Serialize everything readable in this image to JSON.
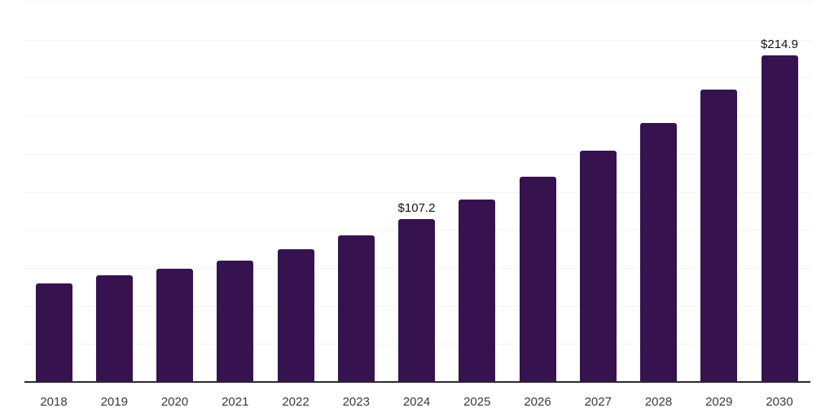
{
  "chart_data": {
    "type": "bar",
    "title": "",
    "xlabel": "",
    "ylabel": "",
    "categories": [
      "2018",
      "2019",
      "2020",
      "2021",
      "2022",
      "2023",
      "2024",
      "2025",
      "2026",
      "2027",
      "2028",
      "2029",
      "2030"
    ],
    "values": [
      64.8,
      70.2,
      74.4,
      80.0,
      87.0,
      96.3,
      107.2,
      119.9,
      135.0,
      151.9,
      170.5,
      192.2,
      214.9
    ],
    "data_labels": [
      "",
      "",
      "",
      "",
      "",
      "",
      "$107.2",
      "",
      "",
      "",
      "",
      "",
      "$214.9"
    ],
    "ylim": [
      0,
      250
    ],
    "gridline_step": 25,
    "grid": true,
    "legend": "none",
    "y_axis_labels_visible": false,
    "colors": {
      "bar": "#36124E",
      "gridline": "#F2F2F2",
      "axis_line": "#2A2A30",
      "tick_label": "#3A3A3A",
      "data_label": "#141414",
      "background": "#FFFFFF"
    }
  }
}
